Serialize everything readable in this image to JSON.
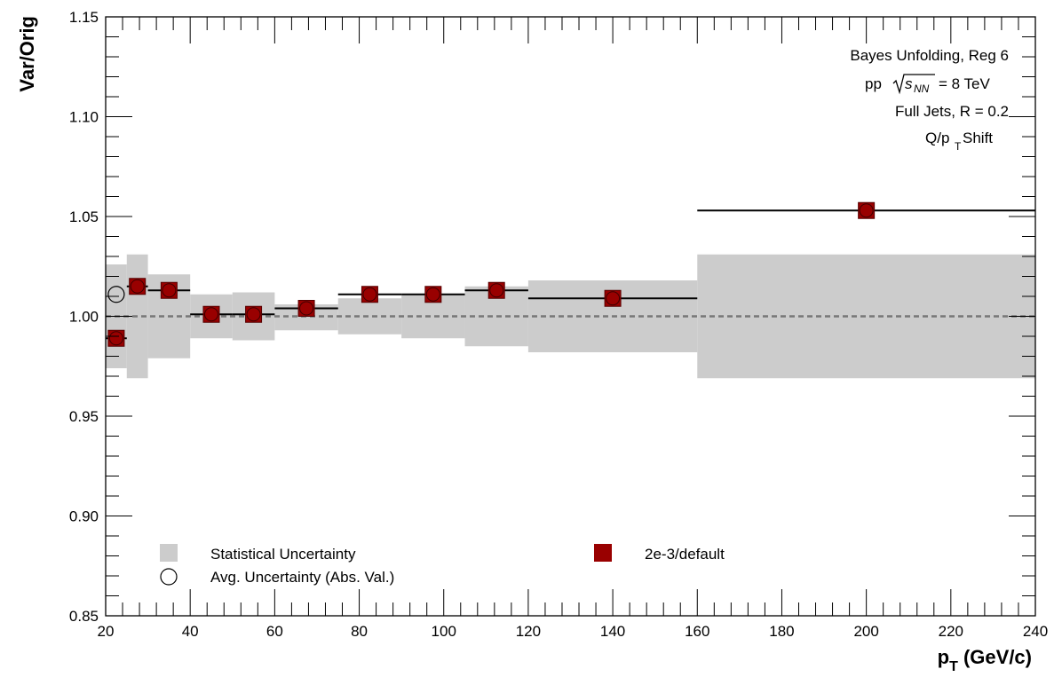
{
  "chart_data": {
    "type": "scatter",
    "xlabel": "p_T (GeV/c)",
    "ylabel": "Var/Orig",
    "xlim": [
      20,
      240
    ],
    "ylim": [
      0.85,
      1.15
    ],
    "xticks": [
      20,
      40,
      60,
      80,
      100,
      120,
      140,
      160,
      180,
      200,
      220,
      240
    ],
    "xtick_labels": [
      "20",
      "40",
      "60",
      "80",
      "100",
      "120",
      "140",
      "160",
      "180",
      "200",
      "220",
      "240"
    ],
    "yticks": [
      0.85,
      0.9,
      0.95,
      1.0,
      1.05,
      1.1,
      1.15
    ],
    "ytick_labels": [
      "0.85",
      "0.90",
      "0.95",
      "1.00",
      "1.05",
      "1.10",
      "1.15"
    ],
    "reference_line": 1.0,
    "annotations": {
      "line1": "Bayes Unfolding, Reg 6",
      "line2_prefix": "pp",
      "line2_sqrt": "s",
      "line2_sub": "NN",
      "line2_suffix": "= 8 TeV",
      "line3": "Full Jets, R = 0.2",
      "line4_prefix": "Q/p",
      "line4_sub": "T",
      "line4_suffix": " Shift"
    },
    "legend": {
      "stat": "Statistical Uncertainty",
      "avg": "Avg. Uncertainty (Abs. Val.)",
      "series": "2e-3/default"
    },
    "bins": [
      {
        "lo": 20,
        "hi": 25,
        "y": 0.989,
        "band": [
          0.974,
          1.026
        ]
      },
      {
        "lo": 25,
        "hi": 30,
        "y": 1.015,
        "band": [
          0.969,
          1.031
        ]
      },
      {
        "lo": 30,
        "hi": 40,
        "y": 1.013,
        "band": [
          0.979,
          1.021
        ]
      },
      {
        "lo": 40,
        "hi": 50,
        "y": 1.001,
        "band": [
          0.989,
          1.011
        ]
      },
      {
        "lo": 50,
        "hi": 60,
        "y": 1.001,
        "band": [
          0.988,
          1.012
        ]
      },
      {
        "lo": 60,
        "hi": 75,
        "y": 1.004,
        "band": [
          0.993,
          1.006
        ]
      },
      {
        "lo": 75,
        "hi": 90,
        "y": 1.011,
        "band": [
          0.991,
          1.009
        ]
      },
      {
        "lo": 90,
        "hi": 105,
        "y": 1.011,
        "band": [
          0.989,
          1.011
        ]
      },
      {
        "lo": 105,
        "hi": 120,
        "y": 1.013,
        "band": [
          0.985,
          1.015
        ]
      },
      {
        "lo": 120,
        "hi": 160,
        "y": 1.009,
        "band": [
          0.982,
          1.018
        ]
      },
      {
        "lo": 160,
        "hi": 240,
        "y": 1.053,
        "band": [
          0.969,
          1.031
        ]
      }
    ],
    "points_x": [
      22.5,
      27.5,
      35,
      45,
      55,
      67.5,
      82.5,
      97.5,
      112.5,
      140,
      200
    ],
    "avg_uncertainty": {
      "x": 22.5,
      "y": 1.011
    },
    "colors": {
      "marker": "#990000",
      "band": "#cccccc",
      "avg": "#000000"
    }
  }
}
